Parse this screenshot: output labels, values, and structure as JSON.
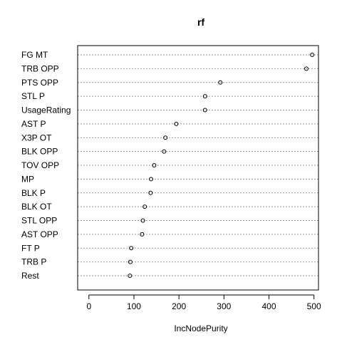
{
  "chart_data": {
    "type": "scatter",
    "title": "rf",
    "xlabel": "IncNodePurity",
    "ylabel": "",
    "xlim": [
      -25,
      510
    ],
    "xticks": [
      0,
      100,
      200,
      300,
      400,
      500
    ],
    "grid": "dotted horizontal guide lines",
    "categories": [
      "FG MT",
      "TRB OPP",
      "PTS OPP",
      "STL P",
      "UsageRating",
      "AST P",
      "X3P OT",
      "BLK OPP",
      "TOV OPP",
      "MP",
      "BLK P",
      "BLK OT",
      "STL OPP",
      "AST OPP",
      "FT P",
      "TRB P",
      "Rest"
    ],
    "values": [
      496,
      483,
      292,
      258,
      258,
      194,
      170,
      167,
      145,
      138,
      137,
      124,
      120,
      118,
      94,
      92,
      91
    ],
    "marker": "open-circle",
    "colors": {
      "marker": "#000000",
      "grid": "#999999",
      "axis": "#000000"
    }
  }
}
